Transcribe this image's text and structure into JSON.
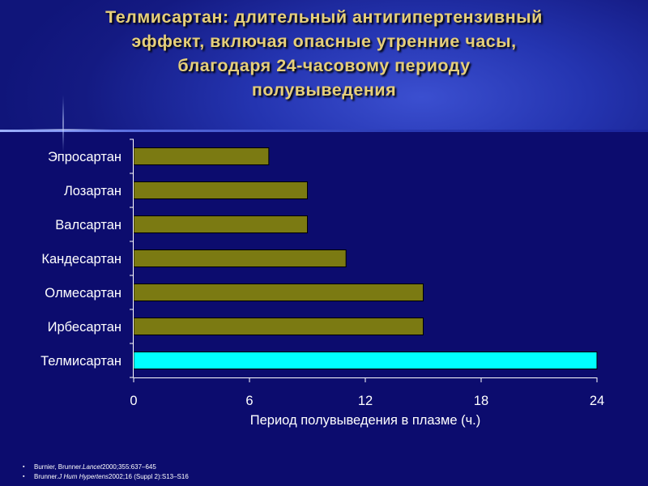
{
  "title": "Телмисартан: длительный антигипертензивный\nэффект, включая опасные утренние часы,\nблагодаря 24-часовому периоду\nполувыведения",
  "chart_data": {
    "type": "bar",
    "orientation": "horizontal",
    "categories": [
      "Эпросартан",
      "Лозартан",
      "Валсартан",
      "Кандесартан",
      "Олмесартан",
      "Ирбесартан",
      "Телмисартан"
    ],
    "values": [
      7,
      9,
      9,
      11,
      15,
      15,
      24
    ],
    "xlabel": "Период полувыведения в плазме (ч.)",
    "xlim": [
      0,
      24
    ],
    "xticks": [
      "0",
      "6",
      "12",
      "18",
      "24"
    ],
    "grid": false,
    "colors": {
      "default_bar": "#7b7a12",
      "highlight_bar": "#00ffff",
      "highlight_index": 6
    }
  },
  "references": [
    {
      "bullet": "▪",
      "pre": "Burnier, Brunner. ",
      "journal": "Lancet",
      "post": " 2000;355:637–645"
    },
    {
      "bullet": "▪",
      "pre": "Brunner. ",
      "journal": "J Hum Hypertens",
      "post": " 2002;16 (Suppl 2):S13–S16"
    }
  ]
}
